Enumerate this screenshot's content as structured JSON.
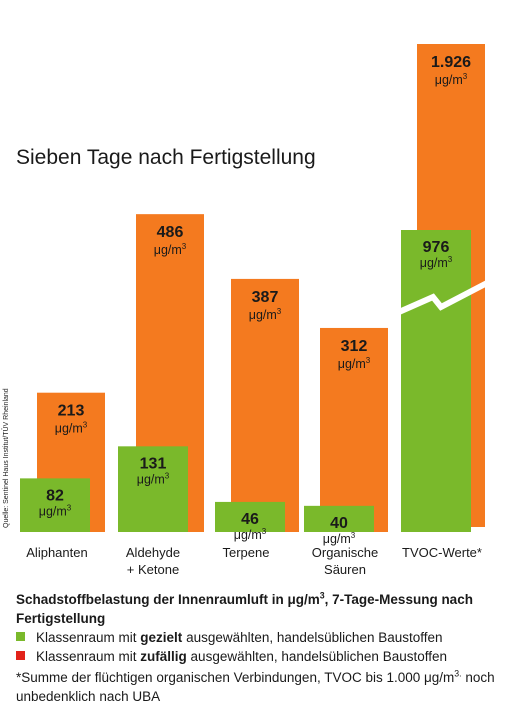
{
  "chart_data": {
    "type": "bar",
    "title": "Sieben Tage nach Fertigstellung",
    "categories": [
      {
        "line1": "Aliphanten",
        "line2": ""
      },
      {
        "line1": "Aldehyde",
        "line2": "+ Ketone"
      },
      {
        "line1": "Terpene",
        "line2": ""
      },
      {
        "line1": "Organische",
        "line2": "Säuren"
      },
      {
        "line1": "TVOC-Werte*",
        "line2": ""
      }
    ],
    "series": [
      {
        "key": "zufaellig",
        "color": "#f47a1f",
        "values": [
          213,
          486,
          387,
          312,
          1926
        ],
        "labels": [
          "213",
          "486",
          "387",
          "312",
          "1.926"
        ]
      },
      {
        "key": "gezielt",
        "color": "#7ab92b",
        "values": [
          82,
          131,
          46,
          40,
          976
        ],
        "labels": [
          "82",
          "131",
          "46",
          "40",
          "976"
        ]
      }
    ],
    "unit_prefix": "μg/m",
    "unit_sup": "3",
    "axis_break": "TVOC-Werte*",
    "ylim": [
      0,
      1926
    ]
  },
  "source": "Quelle: Sentinel Haus Institut/TÜV Rheinland",
  "legend": {
    "heading_pre": "Schadstoffbelastung der Innenraumluft in μg/m",
    "heading_sup": "3",
    "heading_post": ", 7-Tage-Messung nach Fertigstellung",
    "items": [
      {
        "color": "#7ab92b",
        "pre": "Klassenraum mit ",
        "bold": "gezielt",
        "post": " ausgewählten, handelsüblichen Baustoffen"
      },
      {
        "color": "#e2231a",
        "pre": "Klassenraum mit ",
        "bold": "zufällig",
        "post": " ausgewählten, handelsüblichen Baustoffen"
      }
    ],
    "footnote_pre": "*Summe der flüchtigen organischen Verbindungen, TVOC bis 1.000 μg/m",
    "footnote_sup": "3.",
    "footnote_post": " noch unbedenklich nach UBA"
  }
}
